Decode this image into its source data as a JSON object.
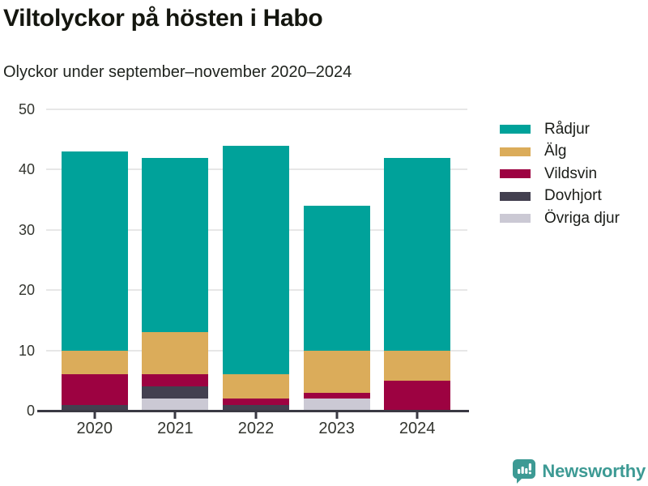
{
  "header": {
    "title": "Viltolyckor på hösten i Habo",
    "subtitle": "Olyckor under september–november 2020–2024"
  },
  "chart_data": {
    "type": "bar",
    "stacked": true,
    "title": "Viltolyckor på hösten i Habo",
    "subtitle": "Olyckor under september–november 2020–2024",
    "categories": [
      "2020",
      "2021",
      "2022",
      "2023",
      "2024"
    ],
    "series": [
      {
        "name": "Rådjur",
        "color": "#00A29A",
        "values": [
          33,
          29,
          38,
          24,
          32
        ]
      },
      {
        "name": "Älg",
        "color": "#DBAC5A",
        "values": [
          4,
          7,
          4,
          7,
          5
        ]
      },
      {
        "name": "Vildsvin",
        "color": "#9D0241",
        "values": [
          5,
          2,
          1,
          1,
          5
        ]
      },
      {
        "name": "Dovhjort",
        "color": "#434050",
        "values": [
          1,
          2,
          1,
          0,
          0
        ]
      },
      {
        "name": "Övriga djur",
        "color": "#CBC9D4",
        "values": [
          0,
          2,
          0,
          2,
          0
        ]
      }
    ],
    "totals": [
      43,
      42,
      44,
      34,
      42
    ],
    "ylim": [
      0,
      50
    ],
    "yticks": [
      0,
      10,
      20,
      30,
      40,
      50
    ],
    "xlabel": "",
    "ylabel": "",
    "grid": true,
    "legend_position": "right",
    "stack_order_bottom_to_top": [
      "Övriga djur",
      "Dovhjort",
      "Vildsvin",
      "Älg",
      "Rådjur"
    ]
  },
  "colors": {
    "axis": "#3a3943",
    "gridline": "#e7e7e7",
    "brand_teal": "#3D9A94"
  },
  "footer": {
    "brand": "Newsworthy"
  }
}
